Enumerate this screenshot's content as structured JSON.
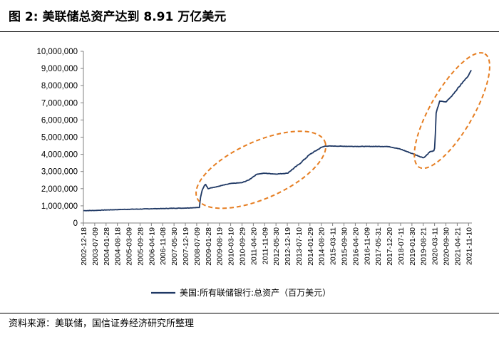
{
  "header": {
    "title": "图 2:  美联储总资产达到 8.91 万亿美元"
  },
  "footer": {
    "source": "资料来源：美联储，国信证券经济研究所整理"
  },
  "colors": {
    "line": "#1f3864",
    "highlight": "#e67e22",
    "axis": "#808080"
  },
  "chart_data": {
    "type": "line",
    "title": "美联储总资产达到 8.91 万亿美元",
    "ylim": [
      0,
      10000000
    ],
    "yticks": [
      "0",
      "1,000,000",
      "2,000,000",
      "3,000,000",
      "4,000,000",
      "5,000,000",
      "6,000,000",
      "7,000,000",
      "8,000,000",
      "9,000,000",
      "10,000,000"
    ],
    "xticks": [
      "2002-12-18",
      "2003-07-09",
      "2004-01-28",
      "2004-08-18",
      "2005-03-09",
      "2005-09-28",
      "2006-04-19",
      "2006-11-08",
      "2007-05-30",
      "2007-12-19",
      "2008-07-09",
      "2009-01-28",
      "2009-08-19",
      "2010-03-10",
      "2010-09-29",
      "2011-04-20",
      "2011-11-09",
      "2012-05-30",
      "2012-12-19",
      "2013-07-10",
      "2014-01-29",
      "2014-08-20",
      "2015-03-11",
      "2015-09-30",
      "2016-04-20",
      "2016-11-09",
      "2017-05-31",
      "2017-12-20",
      "2018-07-11",
      "2019-01-30",
      "2019-08-21",
      "2020-03-11",
      "2020-09-30",
      "2021-04-21",
      "2021-11-10"
    ],
    "legend_position": "bottom",
    "grid": false,
    "annotations": [
      "ellipse around 2008-09 to 2014-08 rise",
      "ellipse around 2020-03 to 2021-12 rise"
    ],
    "series": [
      {
        "name": "美国:所有联储银行:总资产（百万美元）",
        "x": [
          "2002-12-18",
          "2003-07-09",
          "2004-01-28",
          "2004-08-18",
          "2005-03-09",
          "2005-09-28",
          "2006-04-19",
          "2006-11-08",
          "2007-05-30",
          "2007-12-19",
          "2008-07-09",
          "2008-08-27",
          "2008-09-17",
          "2008-10-15",
          "2008-11-26",
          "2008-12-17",
          "2009-01-28",
          "2009-03-18",
          "2009-06-24",
          "2009-08-19",
          "2009-12-30",
          "2010-03-10",
          "2010-09-29",
          "2011-01-26",
          "2011-04-20",
          "2011-06-29",
          "2011-11-09",
          "2012-05-30",
          "2012-12-19",
          "2013-07-10",
          "2014-01-29",
          "2014-08-20",
          "2014-10-29",
          "2015-03-11",
          "2015-09-30",
          "2016-04-20",
          "2016-11-09",
          "2017-05-31",
          "2017-12-20",
          "2018-07-11",
          "2019-01-30",
          "2019-08-21",
          "2019-09-18",
          "2019-12-18",
          "2020-02-26",
          "2020-03-11",
          "2020-03-25",
          "2020-04-08",
          "2020-06-10",
          "2020-09-30",
          "2020-12-30",
          "2021-04-21",
          "2021-08-25",
          "2021-11-10",
          "2021-12-29"
        ],
        "values": [
          720000,
          730000,
          760000,
          780000,
          800000,
          810000,
          830000,
          840000,
          860000,
          870000,
          900000,
          905000,
          1500000,
          1900000,
          2200000,
          2250000,
          2000000,
          2050000,
          2100000,
          2150000,
          2250000,
          2300000,
          2350000,
          2500000,
          2700000,
          2850000,
          2900000,
          2850000,
          2900000,
          3400000,
          4000000,
          4400000,
          4480000,
          4480000,
          4470000,
          4460000,
          4460000,
          4460000,
          4450000,
          4300000,
          4050000,
          3800000,
          3850000,
          4150000,
          4200000,
          4350000,
          5200000,
          6400000,
          7100000,
          7050000,
          7350000,
          7800000,
          8300000,
          8600000,
          8900000
        ]
      }
    ]
  }
}
